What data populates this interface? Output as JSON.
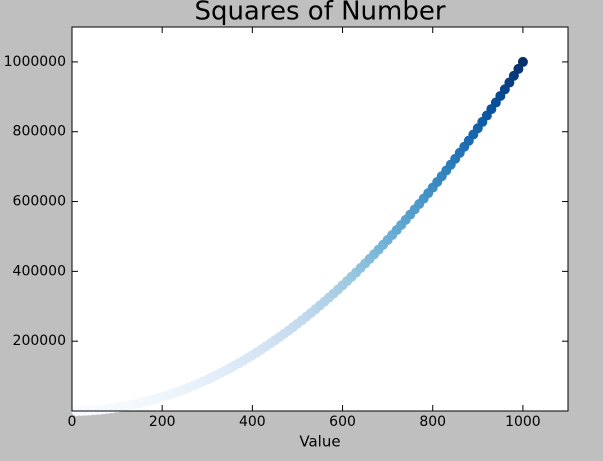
{
  "chart_data": {
    "type": "scatter",
    "title": "Squares of Number",
    "xlabel": "Value",
    "x": [
      10,
      20,
      30,
      40,
      50,
      60,
      70,
      80,
      90,
      100,
      110,
      120,
      130,
      140,
      150,
      160,
      170,
      180,
      190,
      200,
      210,
      220,
      230,
      240,
      250,
      260,
      270,
      280,
      290,
      300,
      310,
      320,
      330,
      340,
      350,
      360,
      370,
      380,
      390,
      400,
      410,
      420,
      430,
      440,
      450,
      460,
      470,
      480,
      490,
      500,
      510,
      520,
      530,
      540,
      550,
      560,
      570,
      580,
      590,
      600,
      610,
      620,
      630,
      640,
      650,
      660,
      670,
      680,
      690,
      700,
      710,
      720,
      730,
      740,
      750,
      760,
      770,
      780,
      790,
      800,
      810,
      820,
      830,
      840,
      850,
      860,
      870,
      880,
      890,
      900,
      910,
      920,
      930,
      940,
      950,
      960,
      970,
      980,
      990,
      1000
    ],
    "values": [
      100,
      400,
      900,
      1600,
      2500,
      3600,
      4900,
      6400,
      8100,
      10000,
      12100,
      14400,
      16900,
      19600,
      22500,
      25600,
      28900,
      32400,
      36100,
      40000,
      44100,
      48400,
      52900,
      57600,
      62500,
      67600,
      72900,
      78400,
      84100,
      90000,
      96100,
      102400,
      108900,
      115600,
      122500,
      129600,
      136900,
      144400,
      152100,
      160000,
      168100,
      176400,
      184900,
      193600,
      202500,
      211600,
      220900,
      230400,
      240100,
      250000,
      260100,
      270400,
      280900,
      291600,
      302500,
      313600,
      324900,
      336400,
      348100,
      360000,
      372100,
      384400,
      396900,
      409600,
      422500,
      435600,
      448900,
      462400,
      476100,
      490000,
      504100,
      518400,
      532900,
      547600,
      562500,
      577600,
      592900,
      608400,
      624100,
      640000,
      656100,
      672400,
      688900,
      705600,
      722500,
      739600,
      756900,
      774400,
      792100,
      810000,
      828100,
      846400,
      864900,
      883600,
      902500,
      921600,
      940900,
      960400,
      980100,
      1000000
    ],
    "colormap": [
      "#f7fbff",
      "#deebf7",
      "#c6dbef",
      "#9ecae1",
      "#6baed6",
      "#4292c6",
      "#2171b5",
      "#08519c",
      "#08306b"
    ],
    "xlim": [
      0,
      1100
    ],
    "ylim": [
      0,
      1100000
    ],
    "xticks": [
      0,
      200,
      400,
      600,
      800,
      1000
    ],
    "yticks": [
      200000,
      400000,
      600000,
      800000,
      1000000
    ],
    "grid": false
  }
}
